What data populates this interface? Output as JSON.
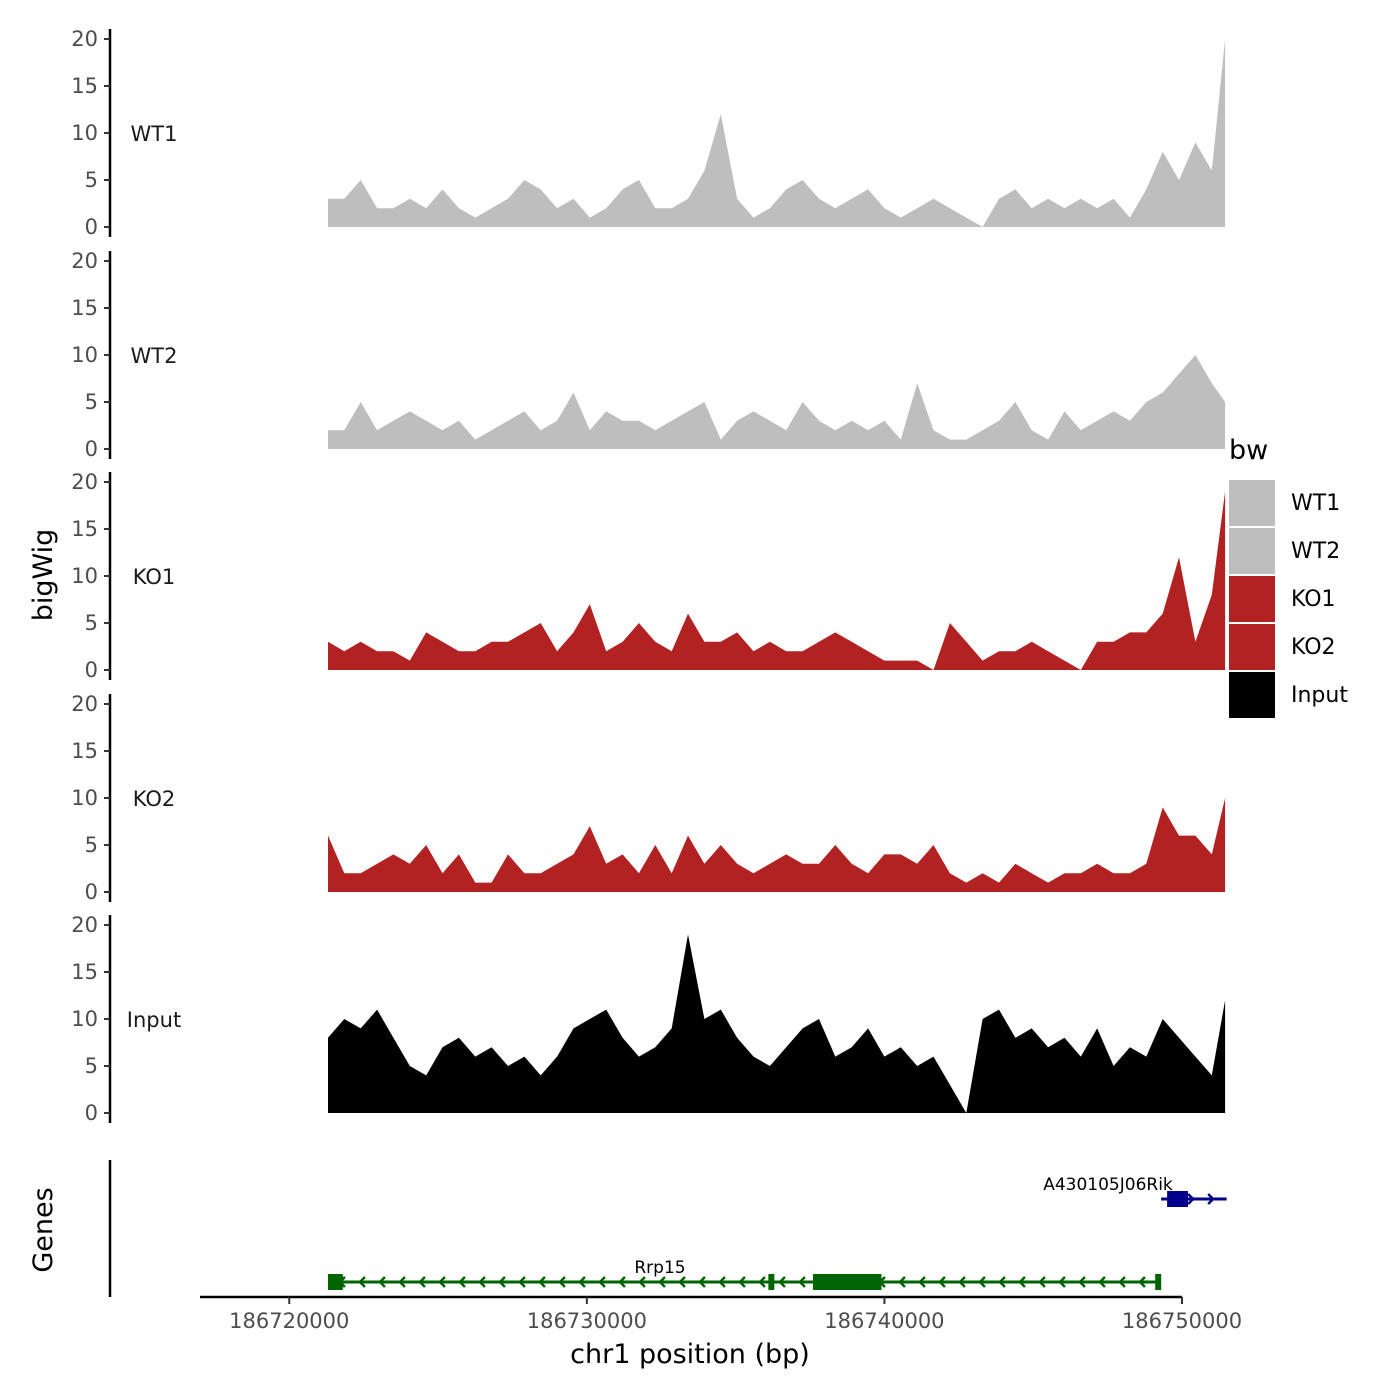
{
  "chart_data": {
    "type": "area",
    "ylabel": "bigWig",
    "gene_axis_label": "Genes",
    "xlabel": "chr1 position (bp)",
    "xlim": [
      186717000,
      186750000
    ],
    "ylim": [
      0,
      20
    ],
    "y_ticks": [
      "0",
      "5",
      "10",
      "15",
      "20"
    ],
    "x_ticks": [
      {
        "value": 186720000,
        "label": "186720000"
      },
      {
        "value": 186730000,
        "label": "186730000"
      },
      {
        "value": 186740000,
        "label": "186740000"
      },
      {
        "value": 186750000,
        "label": "186750000"
      }
    ],
    "x": [
      186721300,
      186721850,
      186722400,
      186722950,
      186723500,
      186724050,
      186724600,
      186725150,
      186725700,
      186726250,
      186726800,
      186727350,
      186727900,
      186728450,
      186729000,
      186729550,
      186730100,
      186730650,
      186731200,
      186731750,
      186732300,
      186732850,
      186733400,
      186733950,
      186734500,
      186735050,
      186735600,
      186736150,
      186736700,
      186737250,
      186737800,
      186738350,
      186738900,
      186739450,
      186740000,
      186740550,
      186741100,
      186741650,
      186742200,
      186742750,
      186743300,
      186743850,
      186744400,
      186744950,
      186745500,
      186746050,
      186746600,
      186747150,
      186747700,
      186748250,
      186748800,
      186749350,
      186749900,
      186750450,
      186751000,
      186751450
    ],
    "series": [
      {
        "name": "WT1",
        "color": "#bebebe",
        "values": [
          3,
          3,
          5,
          2,
          2,
          3,
          2,
          4,
          2,
          1,
          2,
          3,
          5,
          4,
          2,
          3,
          1,
          2,
          4,
          5,
          2,
          2,
          3,
          6,
          12,
          3,
          1,
          2,
          4,
          5,
          3,
          2,
          3,
          4,
          2,
          1,
          2,
          3,
          2,
          1,
          0,
          3,
          4,
          2,
          3,
          2,
          3,
          2,
          3,
          1,
          4,
          8,
          5,
          9,
          6,
          20
        ]
      },
      {
        "name": "WT2",
        "color": "#bebebe",
        "values": [
          2,
          2,
          5,
          2,
          3,
          4,
          3,
          2,
          3,
          1,
          2,
          3,
          4,
          2,
          3,
          6,
          2,
          4,
          3,
          3,
          2,
          3,
          4,
          5,
          1,
          3,
          4,
          3,
          2,
          5,
          3,
          2,
          3,
          2,
          3,
          1,
          7,
          2,
          1,
          1,
          2,
          3,
          5,
          2,
          1,
          4,
          2,
          3,
          4,
          3,
          5,
          6,
          8,
          10,
          7,
          5
        ]
      },
      {
        "name": "KO1",
        "color": "#b22222",
        "values": [
          3,
          2,
          3,
          2,
          2,
          1,
          4,
          3,
          2,
          2,
          3,
          3,
          4,
          5,
          2,
          4,
          7,
          2,
          3,
          5,
          3,
          2,
          6,
          3,
          3,
          4,
          2,
          3,
          2,
          2,
          3,
          4,
          3,
          2,
          1,
          1,
          1,
          0,
          5,
          3,
          1,
          2,
          2,
          3,
          2,
          1,
          0,
          3,
          3,
          4,
          4,
          6,
          12,
          3,
          8,
          19
        ]
      },
      {
        "name": "KO2",
        "color": "#b22222",
        "values": [
          6,
          2,
          2,
          3,
          4,
          3,
          5,
          2,
          4,
          1,
          1,
          4,
          2,
          2,
          3,
          4,
          7,
          3,
          4,
          2,
          5,
          2,
          6,
          3,
          5,
          3,
          2,
          3,
          4,
          3,
          3,
          5,
          3,
          2,
          4,
          4,
          3,
          5,
          2,
          1,
          2,
          1,
          3,
          2,
          1,
          2,
          2,
          3,
          2,
          2,
          3,
          9,
          6,
          6,
          4,
          10
        ]
      },
      {
        "name": "Input",
        "color": "#000000",
        "values": [
          8,
          10,
          9,
          11,
          8,
          5,
          4,
          7,
          8,
          6,
          7,
          5,
          6,
          4,
          6,
          9,
          10,
          11,
          8,
          6,
          7,
          9,
          19,
          10,
          11,
          8,
          6,
          5,
          7,
          9,
          10,
          6,
          7,
          9,
          6,
          7,
          5,
          6,
          3,
          0,
          10,
          11,
          8,
          9,
          7,
          8,
          6,
          9,
          5,
          7,
          6,
          10,
          8,
          6,
          4,
          12
        ]
      }
    ],
    "legend": {
      "title": "bw",
      "position": "right",
      "entries": [
        {
          "label": "WT1",
          "color": "#bebebe"
        },
        {
          "label": "WT2",
          "color": "#bebebe"
        },
        {
          "label": "KO1",
          "color": "#b22222"
        },
        {
          "label": "KO2",
          "color": "#b22222"
        },
        {
          "label": "Input",
          "color": "#000000"
        }
      ]
    },
    "genes": [
      {
        "name": "Rrp15",
        "color": "#006400",
        "strand": "-",
        "start": 186721300,
        "end": 186749300,
        "exons": [
          [
            186721300,
            186721800
          ],
          [
            186736100,
            186736300
          ],
          [
            186737600,
            186739900
          ],
          [
            186749100,
            186749300
          ]
        ]
      },
      {
        "name": "A430105J06Rik",
        "color": "#00008b",
        "strand": "+",
        "start": 186749300,
        "end": 186751500,
        "exons": [
          [
            186749500,
            186750200
          ]
        ]
      }
    ]
  }
}
